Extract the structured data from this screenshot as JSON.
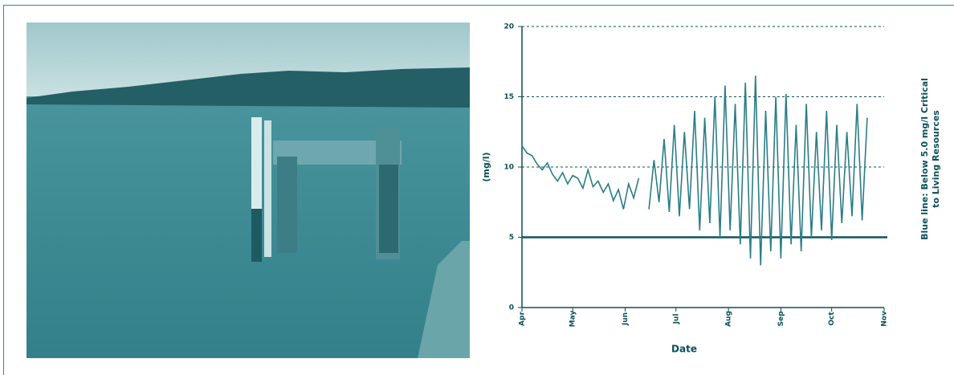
{
  "chart_data": {
    "type": "line",
    "y_label": "(mg/l)",
    "x_label": "Date",
    "annotation": [
      "Blue line: Below 5.0 mg/l Critical",
      "to Living Resources"
    ],
    "xlim": [
      0,
      214
    ],
    "xticks": [
      {
        "value": 0,
        "label": "Apr"
      },
      {
        "value": 30,
        "label": "May"
      },
      {
        "value": 61,
        "label": "Jun"
      },
      {
        "value": 91,
        "label": "Jul"
      },
      {
        "value": 122,
        "label": "Aug"
      },
      {
        "value": 153,
        "label": "Sep"
      },
      {
        "value": 183,
        "label": "Oct"
      },
      {
        "value": 214,
        "label": "Nov"
      }
    ],
    "ylim": [
      0,
      20
    ],
    "yticks": [
      0,
      5,
      10,
      15,
      20
    ],
    "grid": true,
    "reference_line": {
      "value": 5,
      "color": "#0b5560"
    },
    "series": [
      {
        "color": "#2a7d86",
        "x": [
          0,
          3,
          6,
          9,
          12,
          15,
          18,
          21,
          24,
          27,
          30,
          33,
          36,
          39,
          42,
          45,
          48,
          51,
          54,
          57,
          60,
          63,
          66,
          69,
          72,
          75,
          78,
          81,
          84,
          87,
          90,
          93,
          96,
          99,
          102,
          105,
          108,
          111,
          114,
          117,
          120,
          123,
          126,
          129,
          132,
          135,
          138,
          141,
          144,
          147,
          150,
          153,
          156,
          159,
          162,
          165,
          168,
          171,
          174,
          177,
          180,
          183,
          186,
          189,
          192,
          195,
          198,
          201,
          204
        ],
        "values": [
          11.5,
          11,
          10.8,
          10.2,
          9.8,
          10.3,
          9.5,
          9,
          9.6,
          8.8,
          9.4,
          9.2,
          8.5,
          9.8,
          8.6,
          9,
          8.2,
          8.8,
          7.6,
          8.4,
          7,
          8.8,
          7.8,
          9.2,
          null,
          7,
          10.5,
          7.5,
          12,
          6.8,
          13,
          6.5,
          12.5,
          7,
          14,
          5.5,
          13.5,
          6,
          15,
          5,
          15.8,
          5.5,
          14.5,
          4.5,
          16,
          3.5,
          16.5,
          3,
          14,
          4,
          15,
          3.5,
          15.2,
          4.5,
          13,
          4,
          14.5,
          5,
          12.5,
          5.5,
          14,
          4.8,
          13,
          6,
          12.5,
          6.5,
          14.5,
          6.2,
          13.5
        ]
      }
    ]
  }
}
